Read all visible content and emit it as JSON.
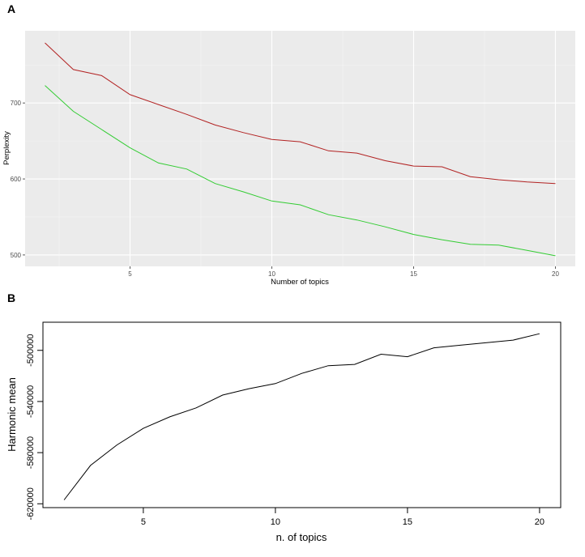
{
  "panel_a": {
    "letter": "A"
  },
  "panel_b": {
    "letter": "B"
  },
  "chart_data": [
    {
      "type": "line",
      "xlabel": "Number of topics",
      "ylabel": "Perplexity",
      "xlim": [
        1.3,
        20.7
      ],
      "ylim": [
        485,
        795
      ],
      "xticks": [
        5,
        10,
        15,
        20
      ],
      "yticks": [
        500,
        600,
        700
      ],
      "grid": true,
      "x": [
        2,
        3,
        4,
        5,
        6,
        7,
        8,
        9,
        10,
        11,
        12,
        13,
        14,
        15,
        16,
        17,
        18,
        19,
        20
      ],
      "series": [
        {
          "color": "#b22222",
          "values": [
            779,
            744,
            736,
            711,
            698,
            685,
            671,
            661,
            652,
            649,
            637,
            634,
            624,
            617,
            616,
            603,
            599,
            596,
            594
          ]
        },
        {
          "color": "#33cc33",
          "values": [
            723,
            689,
            665,
            641,
            621,
            613,
            594,
            583,
            571,
            566,
            553,
            546,
            537,
            527,
            520,
            514,
            513,
            506,
            499
          ]
        }
      ]
    },
    {
      "type": "line",
      "xlabel": "n. of topics",
      "ylabel": "Harmonic mean",
      "xlim": [
        1.2,
        20.8
      ],
      "ylim": [
        -623000,
        -478000
      ],
      "xticks": [
        5,
        10,
        15,
        20
      ],
      "yticks": [
        -620000,
        -580000,
        -540000,
        -500000
      ],
      "ytick_labels": [
        "-620000",
        "-580000",
        "-540000",
        "-500000"
      ],
      "grid": false,
      "x": [
        2,
        3,
        4,
        5,
        6,
        7,
        8,
        9,
        10,
        11,
        12,
        13,
        14,
        15,
        16,
        17,
        18,
        19,
        20
      ],
      "series": [
        {
          "color": "#000000",
          "values": [
            -617000,
            -590000,
            -574000,
            -561000,
            -552000,
            -545000,
            -535000,
            -530000,
            -526000,
            -518000,
            -512000,
            -511000,
            -503000,
            -505000,
            -498000,
            -496000,
            -494000,
            -492000,
            -487000
          ]
        }
      ]
    }
  ]
}
